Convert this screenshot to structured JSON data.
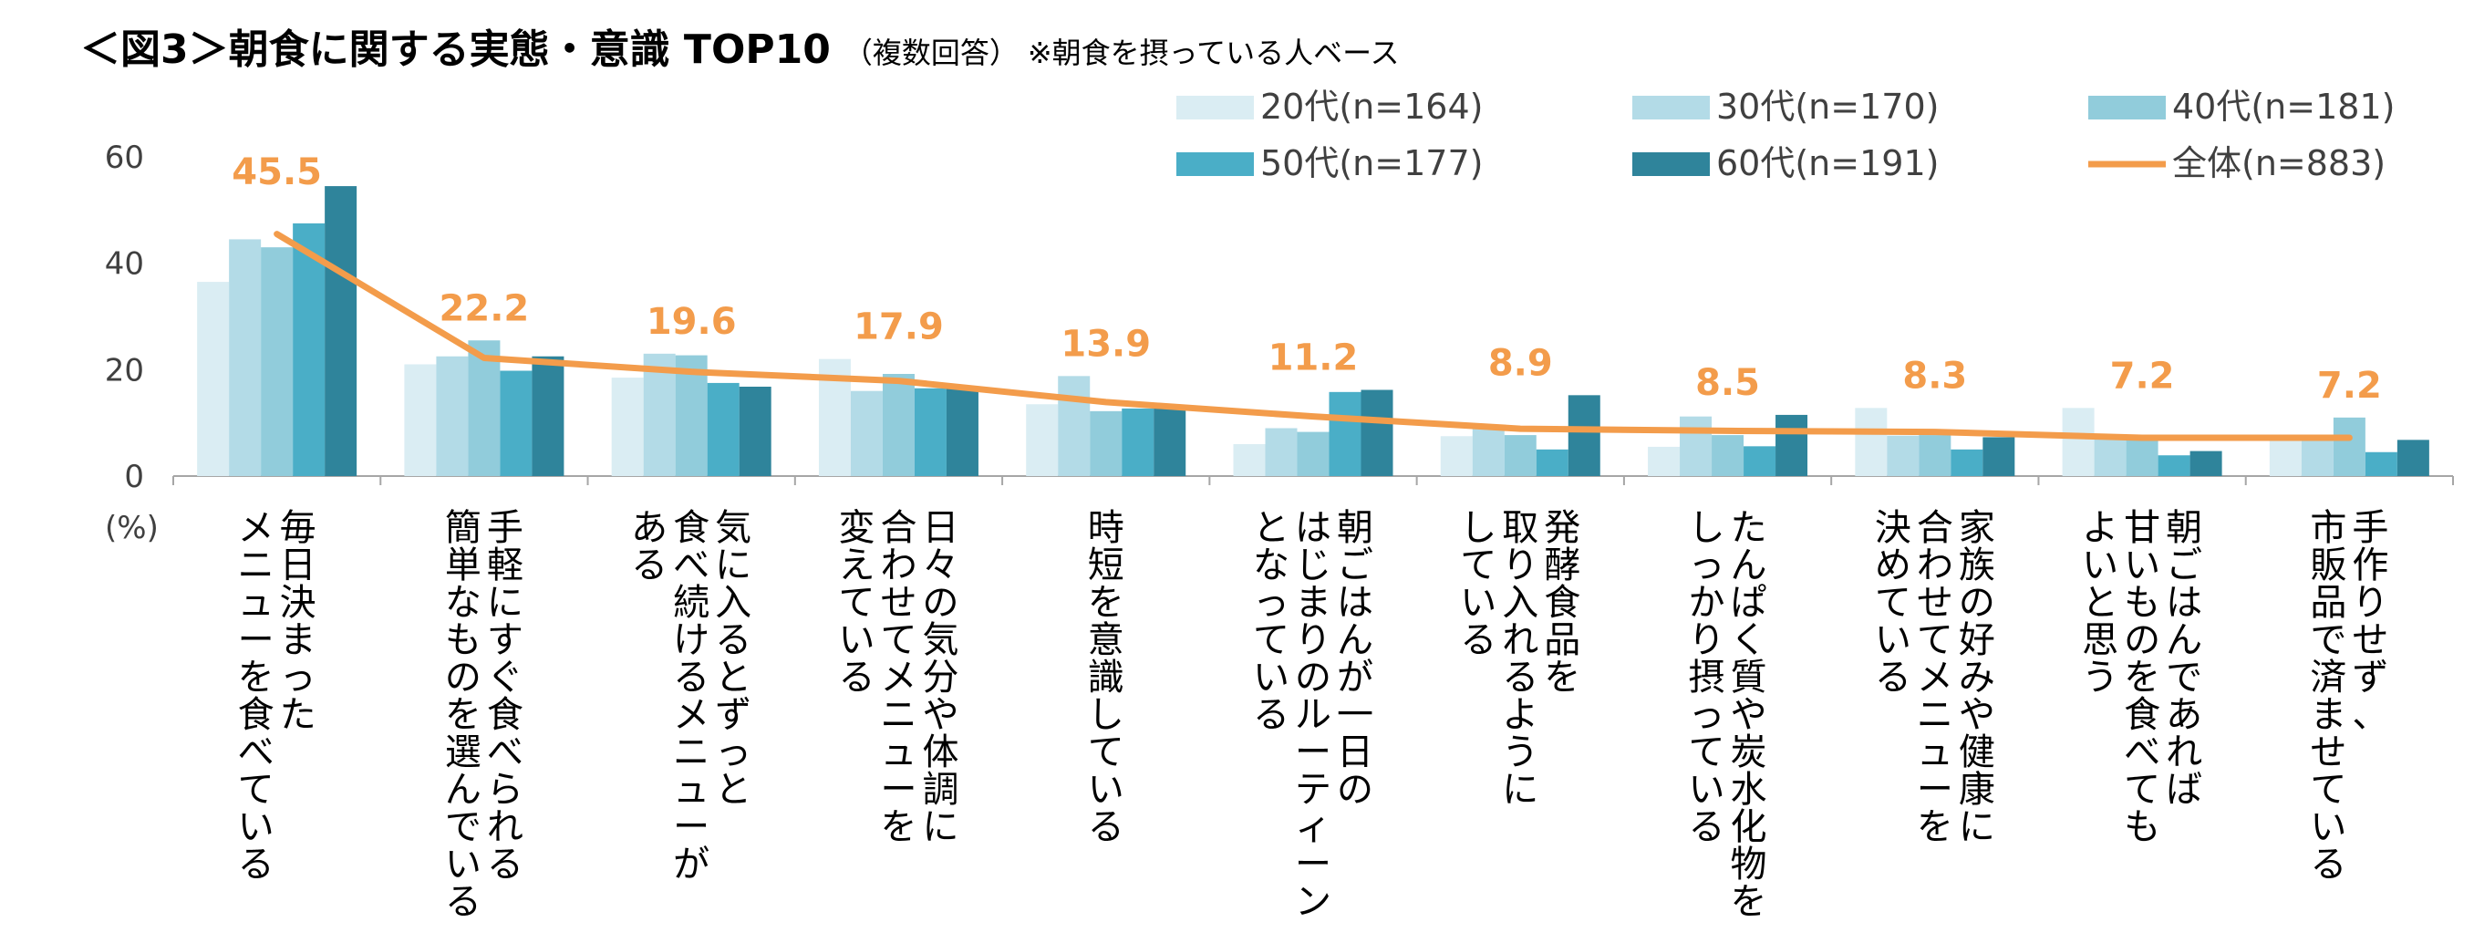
{
  "title": {
    "main": "＜図3＞朝食に関する実態・意識 TOP10",
    "sub": "（複数回答）",
    "note": "※朝食を摂っている人ベース"
  },
  "colors": {
    "20s": "#daedf3",
    "30s": "#b3dbe7",
    "40s": "#91ccdb",
    "50s": "#4aaec7",
    "60s": "#2f849b",
    "total": "#f39c4b",
    "axis": "#a6a6a6",
    "label": "#f39c4b"
  },
  "chart_data": {
    "type": "bar",
    "ylabel": "(%)",
    "ylim": [
      0,
      60
    ],
    "yticks": [
      0,
      20,
      40,
      60
    ],
    "legend_position": "top-right",
    "categories": [
      [
        "毎日決まった",
        "メニューを食べている"
      ],
      [
        "手軽にすぐ食べられる",
        "簡単なものを選んでいる"
      ],
      [
        "気に入るとずっと",
        "食べ続けるメニューが",
        "ある"
      ],
      [
        "日々の気分や体調に",
        "合わせてメニューを",
        "変えている"
      ],
      [
        "時短を意識している"
      ],
      [
        "朝ごはんが一日の",
        "はじまりのルーティーン",
        "となっている"
      ],
      [
        "発酵食品を",
        "取り入れるように",
        "している"
      ],
      [
        "たんぱく質や炭水化物を",
        "しっかり摂っている"
      ],
      [
        "家族の好みや健康に",
        "合わせてメニューを",
        "決めている"
      ],
      [
        "朝ごはんであれば",
        "甘いものを食べても",
        "よいと思う"
      ],
      [
        "手作りせず、",
        "市販品で済ませている"
      ]
    ],
    "series": [
      {
        "name": "20代(n=164)",
        "key": "20s",
        "type": "bar",
        "values": [
          36.5,
          21,
          18.5,
          22,
          13.5,
          6,
          7.5,
          5.5,
          12.8,
          12.8,
          7
        ]
      },
      {
        "name": "30代(n=170)",
        "key": "30s",
        "type": "bar",
        "values": [
          44.5,
          22.5,
          23,
          16,
          18.8,
          9,
          9,
          11.2,
          7.6,
          7.6,
          7
        ]
      },
      {
        "name": "40代(n=181)",
        "key": "40s",
        "type": "bar",
        "values": [
          43,
          25.5,
          22.7,
          19.2,
          12.2,
          8.3,
          7.7,
          7.7,
          7.7,
          7.2,
          11
        ]
      },
      {
        "name": "50代(n=177)",
        "key": "50s",
        "type": "bar",
        "values": [
          47.5,
          19.8,
          17.5,
          16.5,
          12.7,
          15.8,
          5,
          5.6,
          5,
          3.9,
          4.5
        ]
      },
      {
        "name": "60代(n=191)",
        "key": "60s",
        "type": "bar",
        "values": [
          54.5,
          22.5,
          16.8,
          16.5,
          13.1,
          16.2,
          15.2,
          11.5,
          7.3,
          4.7,
          6.8
        ]
      },
      {
        "name": "全体(n=883)",
        "key": "total",
        "type": "line",
        "values": [
          45.5,
          22.2,
          19.6,
          17.9,
          13.9,
          11.2,
          8.9,
          8.5,
          8.3,
          7.2,
          7.2
        ]
      }
    ],
    "data_labels": [
      "45.5",
      "22.2",
      "19.6",
      "17.9",
      "13.9",
      "11.2",
      "8.9",
      "8.5",
      "8.3",
      "7.2",
      "7.2"
    ]
  }
}
